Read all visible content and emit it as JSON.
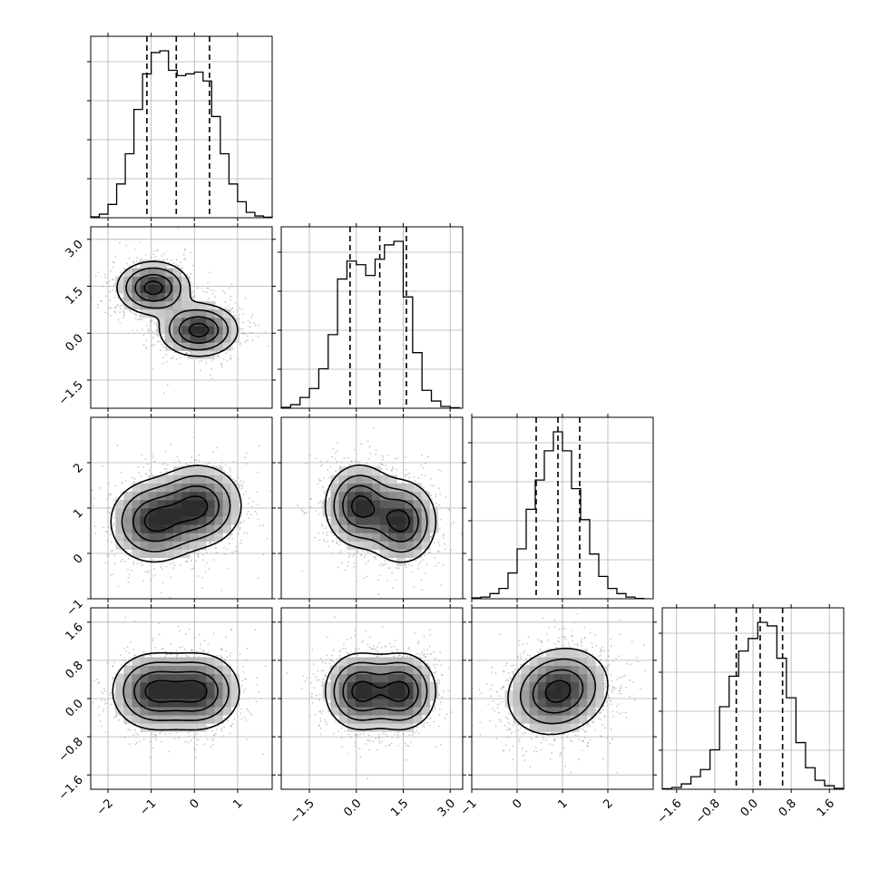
{
  "chart_data": {
    "type": "corner",
    "n_params": 4,
    "grid": true,
    "params": [
      {
        "range": [
          -2.4,
          1.8
        ],
        "ticks": [
          -2,
          -1,
          0,
          1
        ],
        "tick_labels": [
          "−2",
          "−1",
          "0",
          "1"
        ]
      },
      {
        "range": [
          -2.4,
          3.4
        ],
        "ticks": [
          -1.5,
          0.0,
          1.5,
          3.0
        ],
        "tick_labels": [
          "−1.5",
          "0.0",
          "1.5",
          "3.0"
        ]
      },
      {
        "range": [
          -1.0,
          3.0
        ],
        "ticks": [
          -1,
          0,
          1,
          2
        ],
        "tick_labels": [
          "−1",
          "0",
          "1",
          "2"
        ]
      },
      {
        "range": [
          -1.9,
          1.9
        ],
        "ticks": [
          -1.6,
          -0.8,
          0.0,
          0.8,
          1.6
        ],
        "tick_labels": [
          "−1.6",
          "−0.8",
          "0.0",
          "0.8",
          "1.6"
        ]
      }
    ],
    "histograms": [
      {
        "bins": [
          -2.4,
          -2.2,
          -2.0,
          -1.8,
          -1.6,
          -1.4,
          -1.2,
          -1.0,
          -0.8,
          -0.6,
          -0.4,
          -0.2,
          0.0,
          0.2,
          0.4,
          0.6,
          0.8,
          1.0,
          1.2,
          1.4,
          1.6,
          1.8
        ],
        "counts": [
          0.005,
          0.02,
          0.075,
          0.19,
          0.36,
          0.61,
          0.81,
          0.93,
          0.94,
          0.83,
          0.8,
          0.81,
          0.82,
          0.77,
          0.57,
          0.36,
          0.19,
          0.09,
          0.03,
          0.01,
          0.003
        ],
        "quantiles": [
          -1.1,
          -0.42,
          0.35
        ]
      },
      {
        "bins": [
          -2.4,
          -2.1,
          -1.8,
          -1.5,
          -1.2,
          -0.9,
          -0.6,
          -0.3,
          0.0,
          0.3,
          0.6,
          0.9,
          1.2,
          1.5,
          1.8,
          2.1,
          2.4,
          2.7,
          3.0,
          3.3
        ],
        "counts": [
          0.005,
          0.02,
          0.06,
          0.11,
          0.22,
          0.41,
          0.72,
          0.82,
          0.8,
          0.74,
          0.83,
          0.91,
          0.93,
          0.62,
          0.31,
          0.1,
          0.04,
          0.01,
          0.003
        ],
        "quantiles": [
          -0.2,
          0.75,
          1.6
        ]
      },
      {
        "bins": [
          -1.0,
          -0.8,
          -0.6,
          -0.4,
          -0.2,
          0.0,
          0.2,
          0.4,
          0.6,
          0.8,
          1.0,
          1.2,
          1.4,
          1.6,
          1.8,
          2.0,
          2.2,
          2.4,
          2.6,
          2.8
        ],
        "counts": [
          0.005,
          0.01,
          0.03,
          0.06,
          0.15,
          0.29,
          0.52,
          0.69,
          0.86,
          0.97,
          0.86,
          0.64,
          0.46,
          0.26,
          0.13,
          0.06,
          0.03,
          0.01,
          0.002
        ],
        "quantiles": [
          0.42,
          0.9,
          1.38
        ]
      },
      {
        "bins": [
          -1.9,
          -1.7,
          -1.5,
          -1.3,
          -1.1,
          -0.9,
          -0.7,
          -0.5,
          -0.3,
          -0.1,
          0.1,
          0.3,
          0.5,
          0.7,
          0.9,
          1.1,
          1.3,
          1.5,
          1.7,
          1.9
        ],
        "counts": [
          0.003,
          0.01,
          0.03,
          0.07,
          0.11,
          0.22,
          0.46,
          0.63,
          0.77,
          0.84,
          0.93,
          0.91,
          0.73,
          0.51,
          0.26,
          0.12,
          0.05,
          0.02,
          0.005
        ],
        "quantiles": [
          -0.35,
          0.15,
          0.62
        ]
      }
    ],
    "pairs": [
      {
        "x": 0,
        "y": 1,
        "modes": [
          {
            "mx": -0.95,
            "my": 1.45,
            "sx": 0.42,
            "sy": 0.42,
            "rho": 0.0,
            "w": 0.5
          },
          {
            "mx": 0.1,
            "my": 0.1,
            "sx": 0.45,
            "sy": 0.42,
            "rho": 0.0,
            "w": 0.5
          }
        ]
      },
      {
        "x": 0,
        "y": 2,
        "modes": [
          {
            "mx": -0.95,
            "my": 0.7,
            "sx": 0.5,
            "sy": 0.45,
            "rho": 0.0,
            "w": 0.5
          },
          {
            "mx": 0.1,
            "my": 1.05,
            "sx": 0.5,
            "sy": 0.45,
            "rho": 0.0,
            "w": 0.5
          }
        ]
      },
      {
        "x": 1,
        "y": 2,
        "modes": [
          {
            "mx": 0.1,
            "my": 1.05,
            "sx": 0.55,
            "sy": 0.45,
            "rho": 0.0,
            "w": 0.5
          },
          {
            "mx": 1.45,
            "my": 0.7,
            "sx": 0.55,
            "sy": 0.45,
            "rho": 0.0,
            "w": 0.5
          }
        ]
      },
      {
        "x": 0,
        "y": 3,
        "modes": [
          {
            "mx": -0.95,
            "my": 0.15,
            "sx": 0.48,
            "sy": 0.4,
            "rho": 0.0,
            "w": 0.5
          },
          {
            "mx": 0.1,
            "my": 0.15,
            "sx": 0.48,
            "sy": 0.4,
            "rho": 0.0,
            "w": 0.5
          }
        ]
      },
      {
        "x": 1,
        "y": 3,
        "modes": [
          {
            "mx": 0.1,
            "my": 0.15,
            "sx": 0.55,
            "sy": 0.4,
            "rho": 0.0,
            "w": 0.5
          },
          {
            "mx": 1.45,
            "my": 0.15,
            "sx": 0.55,
            "sy": 0.4,
            "rho": 0.0,
            "w": 0.5
          }
        ]
      },
      {
        "x": 2,
        "y": 3,
        "modes": [
          {
            "mx": 0.9,
            "my": 0.15,
            "sx": 0.55,
            "sy": 0.45,
            "rho": 0.15,
            "w": 1.0
          }
        ]
      }
    ],
    "contour_levels_sigma": [
      0.5,
      1.0,
      1.5,
      2.0
    ]
  }
}
